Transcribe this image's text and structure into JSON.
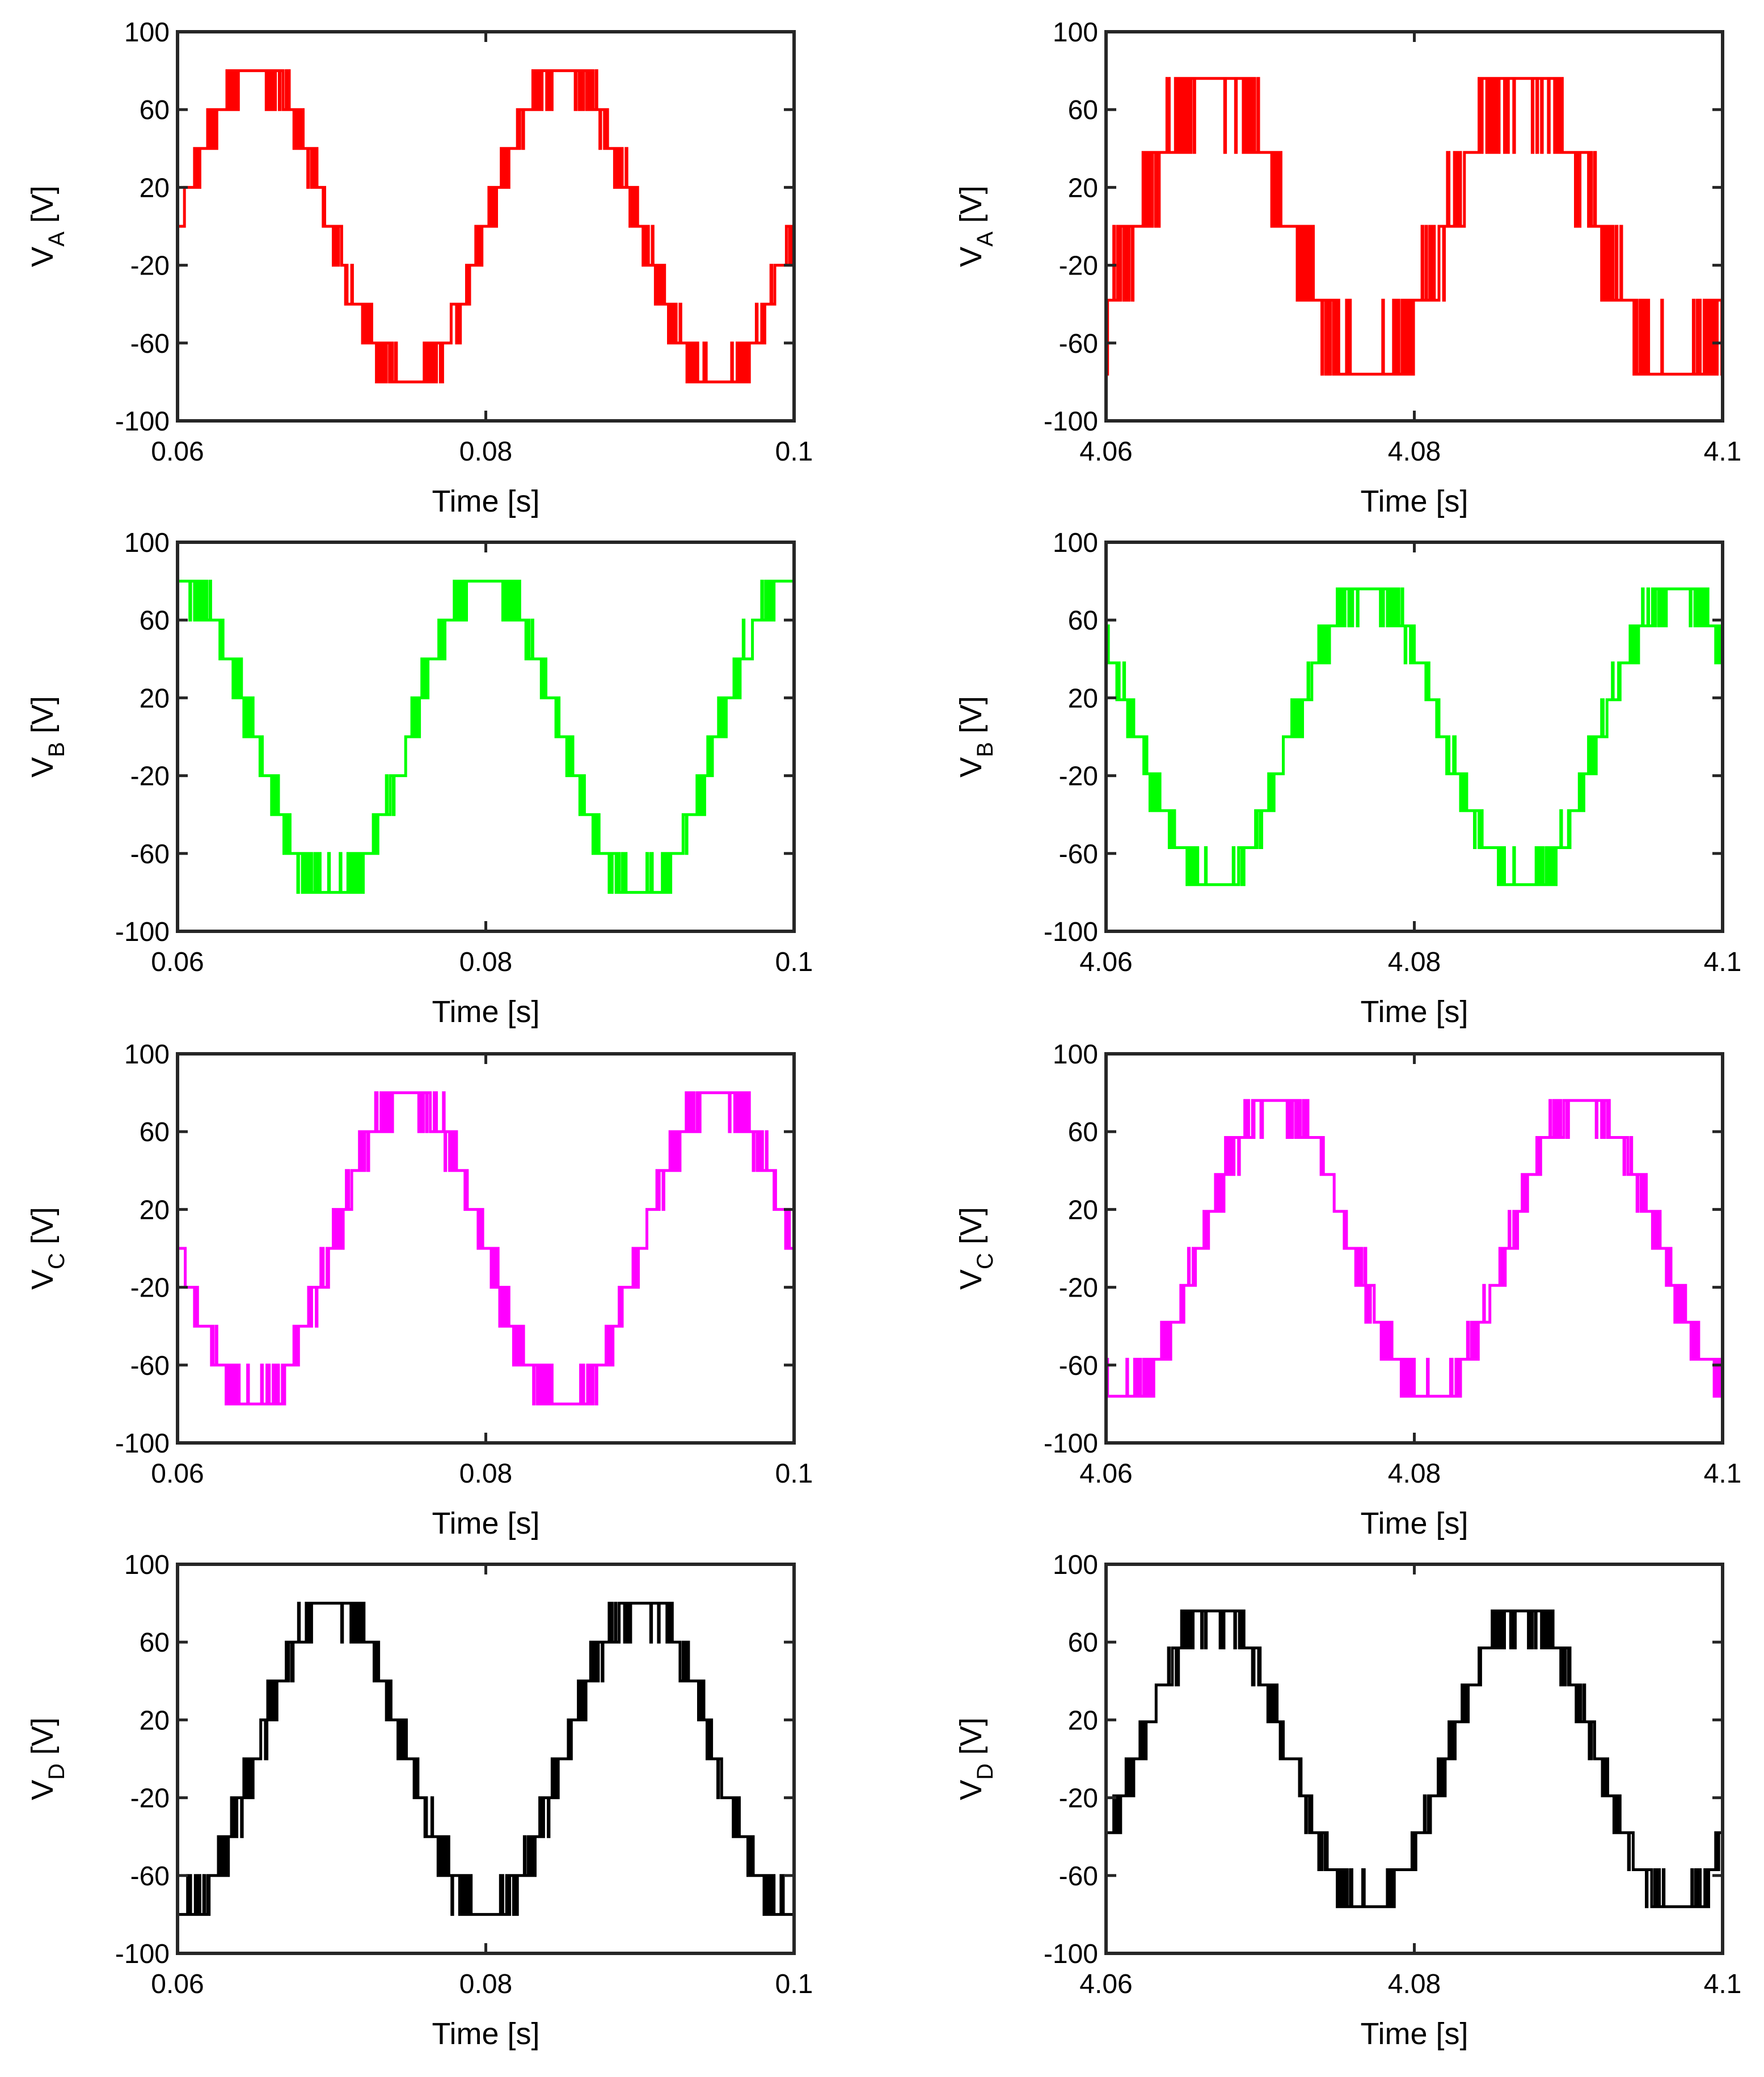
{
  "chart_data": [
    {
      "type": "line",
      "id": "va-start",
      "ylabel_main": "V",
      "ylabel_sub": "A",
      "ylabel_unit": " [V]",
      "xlabel": "Time [s]",
      "xlim": [
        0.06,
        0.1
      ],
      "ylim": [
        -100,
        100
      ],
      "xticks": [
        "0.06",
        "0.08",
        "0.1"
      ],
      "yticks": [
        "100",
        "60",
        "20",
        "-20",
        "-60",
        "-100"
      ],
      "series": [
        {
          "color": "#ff0000",
          "amplitude": 80,
          "level_step": 20,
          "levels": 5,
          "frequency_hz": 50,
          "phase_deg": 0,
          "switching_frequency_hz": 2000
        }
      ]
    },
    {
      "type": "line",
      "id": "va-end",
      "ylabel_main": "V",
      "ylabel_sub": "A",
      "ylabel_unit": " [V]",
      "xlabel": "Time [s]",
      "xlim": [
        4.06,
        4.1
      ],
      "ylim": [
        -100,
        100
      ],
      "xticks": [
        "4.06",
        "4.08",
        "4.1"
      ],
      "yticks": [
        "100",
        "60",
        "20",
        "-20",
        "-60",
        "-100"
      ],
      "series": [
        {
          "color": "#ff0000",
          "amplitude": 76,
          "level_step": 38,
          "levels": 3,
          "frequency_hz": 50,
          "phase_deg": -36,
          "switching_frequency_hz": 2000
        }
      ]
    },
    {
      "type": "line",
      "id": "vb-start",
      "ylabel_main": "V",
      "ylabel_sub": "B",
      "ylabel_unit": " [V]",
      "xlabel": "Time [s]",
      "xlim": [
        0.06,
        0.1
      ],
      "ylim": [
        -100,
        100
      ],
      "xticks": [
        "0.06",
        "0.08",
        "0.1"
      ],
      "yticks": [
        "100",
        "60",
        "20",
        "-20",
        "-60",
        "-100"
      ],
      "series": [
        {
          "color": "#00ff00",
          "amplitude": 80,
          "level_step": 20,
          "levels": 5,
          "frequency_hz": 50,
          "phase_deg": 90,
          "switching_frequency_hz": 2000
        }
      ]
    },
    {
      "type": "line",
      "id": "vb-end",
      "ylabel_main": "V",
      "ylabel_sub": "B",
      "ylabel_unit": " [V]",
      "xlabel": "Time [s]",
      "xlim": [
        4.06,
        4.1
      ],
      "ylim": [
        -100,
        100
      ],
      "xticks": [
        "4.06",
        "4.08",
        "4.1"
      ],
      "yticks": [
        "100",
        "60",
        "20",
        "-20",
        "-60",
        "-100"
      ],
      "series": [
        {
          "color": "#00ff00",
          "amplitude": 76,
          "level_step": 19,
          "levels": 5,
          "frequency_hz": 50,
          "phase_deg": 144,
          "switching_frequency_hz": 2000
        }
      ]
    },
    {
      "type": "line",
      "id": "vc-start",
      "ylabel_main": "V",
      "ylabel_sub": "C",
      "ylabel_unit": " [V]",
      "xlabel": "Time [s]",
      "xlim": [
        0.06,
        0.1
      ],
      "ylim": [
        -100,
        100
      ],
      "xticks": [
        "0.06",
        "0.08",
        "0.1"
      ],
      "yticks": [
        "100",
        "60",
        "20",
        "-20",
        "-60",
        "-100"
      ],
      "series": [
        {
          "color": "#ff00ff",
          "amplitude": 80,
          "level_step": 20,
          "levels": 5,
          "frequency_hz": 50,
          "phase_deg": 180,
          "switching_frequency_hz": 2000
        }
      ]
    },
    {
      "type": "line",
      "id": "vc-end",
      "ylabel_main": "V",
      "ylabel_sub": "C",
      "ylabel_unit": " [V]",
      "xlabel": "Time [s]",
      "xlim": [
        4.06,
        4.1
      ],
      "ylim": [
        -100,
        100
      ],
      "xticks": [
        "4.06",
        "4.08",
        "4.1"
      ],
      "yticks": [
        "100",
        "60",
        "20",
        "-20",
        "-60",
        "-100"
      ],
      "series": [
        {
          "color": "#ff00ff",
          "amplitude": 76,
          "level_step": 19,
          "levels": 5,
          "frequency_hz": 50,
          "phase_deg": -108,
          "switching_frequency_hz": 2000
        }
      ]
    },
    {
      "type": "line",
      "id": "vd-start",
      "ylabel_main": "V",
      "ylabel_sub": "D",
      "ylabel_unit": " [V]",
      "xlabel": "Time [s]",
      "xlim": [
        0.06,
        0.1
      ],
      "ylim": [
        -100,
        100
      ],
      "xticks": [
        "0.06",
        "0.08",
        "0.1"
      ],
      "yticks": [
        "100",
        "60",
        "20",
        "-20",
        "-60",
        "-100"
      ],
      "series": [
        {
          "color": "#000000",
          "amplitude": 80,
          "level_step": 20,
          "levels": 5,
          "frequency_hz": 50,
          "phase_deg": -90,
          "switching_frequency_hz": 2000
        }
      ]
    },
    {
      "type": "line",
      "id": "vd-end",
      "ylabel_main": "V",
      "ylabel_sub": "D",
      "ylabel_unit": " [V]",
      "xlabel": "Time [s]",
      "xlim": [
        4.06,
        4.1
      ],
      "ylim": [
        -100,
        100
      ],
      "xticks": [
        "4.06",
        "4.08",
        "4.1"
      ],
      "yticks": [
        "100",
        "60",
        "20",
        "-20",
        "-60",
        "-100"
      ],
      "series": [
        {
          "color": "#000000",
          "amplitude": 76,
          "level_step": 19,
          "levels": 5,
          "frequency_hz": 50,
          "phase_deg": -36,
          "switching_frequency_hz": 2000
        }
      ]
    }
  ]
}
